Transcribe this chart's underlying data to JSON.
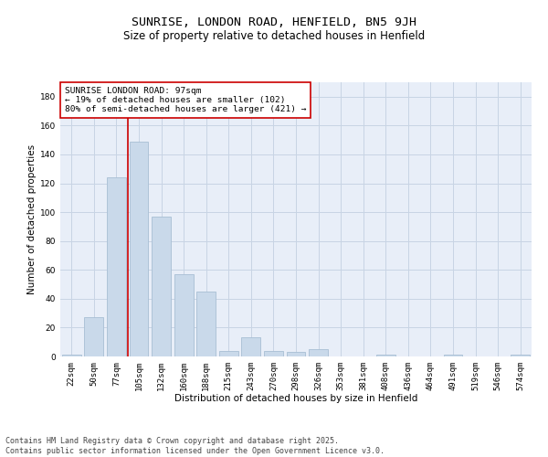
{
  "title": "SUNRISE, LONDON ROAD, HENFIELD, BN5 9JH",
  "subtitle": "Size of property relative to detached houses in Henfield",
  "xlabel": "Distribution of detached houses by size in Henfield",
  "ylabel": "Number of detached properties",
  "categories": [
    "22sqm",
    "50sqm",
    "77sqm",
    "105sqm",
    "132sqm",
    "160sqm",
    "188sqm",
    "215sqm",
    "243sqm",
    "270sqm",
    "298sqm",
    "326sqm",
    "353sqm",
    "381sqm",
    "408sqm",
    "436sqm",
    "464sqm",
    "491sqm",
    "519sqm",
    "546sqm",
    "574sqm"
  ],
  "values": [
    1,
    27,
    124,
    149,
    97,
    57,
    45,
    4,
    13,
    4,
    3,
    5,
    0,
    0,
    1,
    0,
    0,
    1,
    0,
    0,
    1
  ],
  "bar_color": "#c9d9ea",
  "bar_edge_color": "#a8bfd4",
  "bar_linewidth": 0.6,
  "vline_color": "#cc0000",
  "vline_x": 2.5,
  "annotation_text": "SUNRISE LONDON ROAD: 97sqm\n← 19% of detached houses are smaller (102)\n80% of semi-detached houses are larger (421) →",
  "annotation_box_color": "#ffffff",
  "annotation_box_edge": "#cc0000",
  "ylim": [
    0,
    190
  ],
  "yticks": [
    0,
    20,
    40,
    60,
    80,
    100,
    120,
    140,
    160,
    180
  ],
  "grid_color": "#c8d4e4",
  "bg_color": "#e8eef8",
  "footer": "Contains HM Land Registry data © Crown copyright and database right 2025.\nContains public sector information licensed under the Open Government Licence v3.0.",
  "title_fontsize": 9.5,
  "subtitle_fontsize": 8.5,
  "axis_label_fontsize": 7.5,
  "tick_fontsize": 6.5,
  "annotation_fontsize": 6.8,
  "footer_fontsize": 6.0
}
